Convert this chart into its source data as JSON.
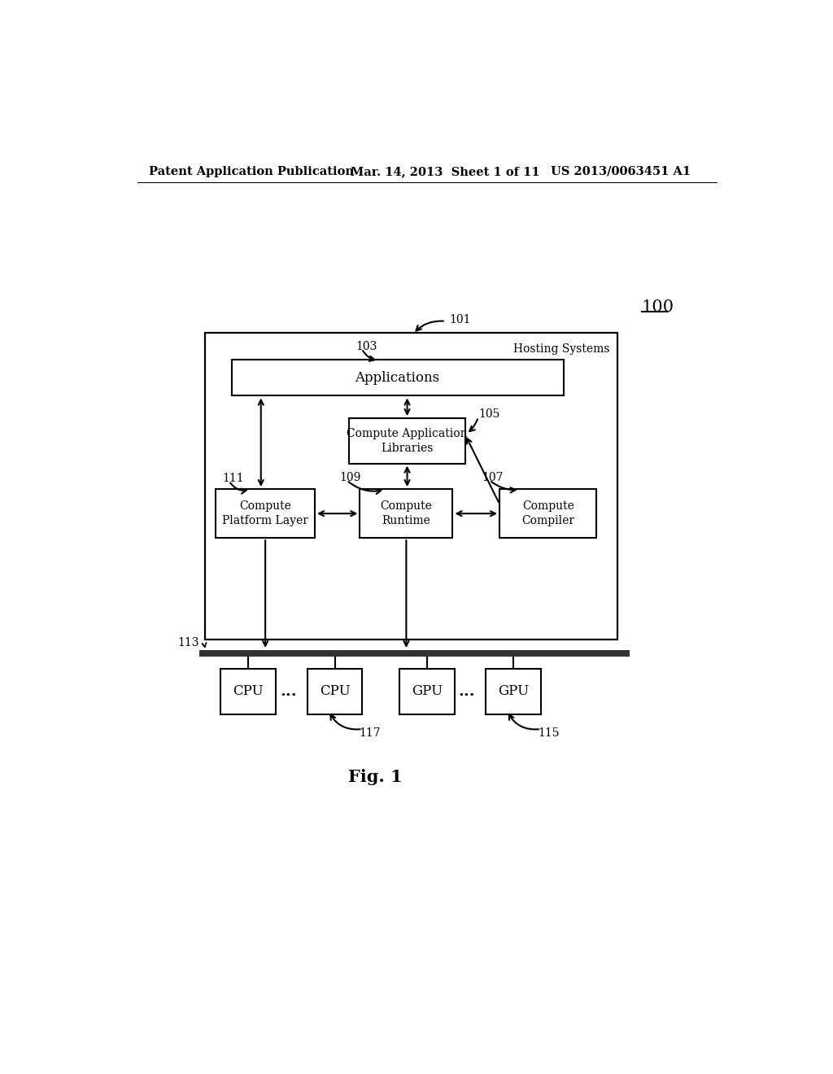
{
  "bg_color": "#ffffff",
  "header_left": "Patent Application Publication",
  "header_mid": "Mar. 14, 2013  Sheet 1 of 11",
  "header_right": "US 2013/0063451 A1",
  "fig_label": "Fig. 1",
  "label_100": "100",
  "label_101": "101",
  "label_103": "103",
  "label_105": "105",
  "label_107": "107",
  "label_109": "109",
  "label_111": "111",
  "label_113": "113",
  "label_115": "115",
  "label_117": "117",
  "hosting_label": "Hosting Systems",
  "app_label": "Applications",
  "cal_label": "Compute Application\nLibraries",
  "cpl_label": "Compute\nPlatform Layer",
  "cr_label": "Compute\nRuntime",
  "cc_label": "Compute\nCompiler",
  "cpu_label": "CPU",
  "gpu_label": "GPU",
  "dots": "..."
}
